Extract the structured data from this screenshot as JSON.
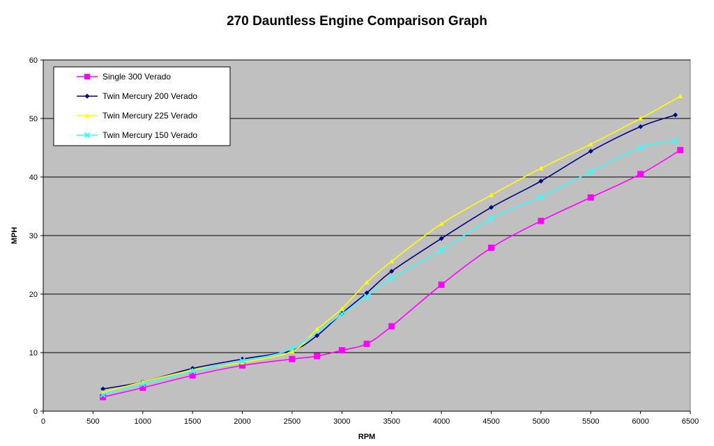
{
  "chart_data": {
    "type": "line",
    "title": "270 Dauntless Engine Comparison Graph",
    "xlabel": "RPM",
    "ylabel": "MPH",
    "xlim": [
      0,
      6500
    ],
    "ylim": [
      0,
      60
    ],
    "x_ticks": [
      "0",
      "500",
      "1000",
      "1500",
      "2000",
      "2500",
      "3000",
      "3500",
      "4000",
      "4500",
      "5000",
      "5500",
      "6000",
      "6500"
    ],
    "y_ticks": [
      "0",
      "10",
      "20",
      "30",
      "40",
      "50",
      "60"
    ],
    "grid": "horizontal",
    "plot_background": "#c0c0c0",
    "legend_position": "top-left",
    "series": [
      {
        "name": "Single 300 Verado",
        "color": "#ff00ff",
        "marker": "square",
        "points": [
          [
            600,
            2.4
          ],
          [
            1000,
            4.0
          ],
          [
            1500,
            6.1
          ],
          [
            2000,
            7.8
          ],
          [
            2500,
            8.9
          ],
          [
            2750,
            9.4
          ],
          [
            3000,
            10.4
          ],
          [
            3250,
            11.5
          ],
          [
            3500,
            14.5
          ],
          [
            4000,
            21.6
          ],
          [
            4500,
            27.9
          ],
          [
            5000,
            32.5
          ],
          [
            5500,
            36.5
          ],
          [
            6000,
            40.5
          ],
          [
            6400,
            44.6
          ]
        ]
      },
      {
        "name": "Twin Mercury 200 Verado",
        "color": "#000080",
        "marker": "diamond",
        "points": [
          [
            600,
            3.8
          ],
          [
            1000,
            5.0
          ],
          [
            1500,
            7.3
          ],
          [
            2000,
            8.9
          ],
          [
            2500,
            10.4
          ],
          [
            2750,
            12.9
          ],
          [
            3000,
            16.7
          ],
          [
            3250,
            20.2
          ],
          [
            3500,
            23.9
          ],
          [
            4000,
            29.5
          ],
          [
            4500,
            34.8
          ],
          [
            5000,
            39.3
          ],
          [
            5500,
            44.4
          ],
          [
            6000,
            48.6
          ],
          [
            6350,
            50.6
          ]
        ]
      },
      {
        "name": "Twin Mercury 225 Verado",
        "color": "#ffff00",
        "marker": "triangle",
        "points": [
          [
            600,
            3.2
          ],
          [
            1000,
            5.0
          ],
          [
            1500,
            7.0
          ],
          [
            2000,
            8.3
          ],
          [
            2500,
            10.2
          ],
          [
            2750,
            14.0
          ],
          [
            3000,
            17.5
          ],
          [
            3250,
            22.0
          ],
          [
            3500,
            25.6
          ],
          [
            4000,
            32.0
          ],
          [
            4500,
            36.9
          ],
          [
            5000,
            41.5
          ],
          [
            5500,
            45.6
          ],
          [
            6000,
            50.0
          ],
          [
            6400,
            53.8
          ]
        ]
      },
      {
        "name": "Twin Mercury 150 Verado",
        "color": "#33ffff",
        "marker": "x",
        "points": [
          [
            600,
            2.8
          ],
          [
            1000,
            4.6
          ],
          [
            1500,
            6.8
          ],
          [
            2000,
            8.6
          ],
          [
            2500,
            10.7
          ],
          [
            3000,
            16.6
          ],
          [
            3250,
            19.6
          ],
          [
            3500,
            22.7
          ],
          [
            4000,
            27.5
          ],
          [
            4500,
            32.9
          ],
          [
            5000,
            36.6
          ],
          [
            5500,
            40.9
          ],
          [
            6000,
            45.0
          ],
          [
            6350,
            46.2
          ]
        ]
      }
    ]
  }
}
